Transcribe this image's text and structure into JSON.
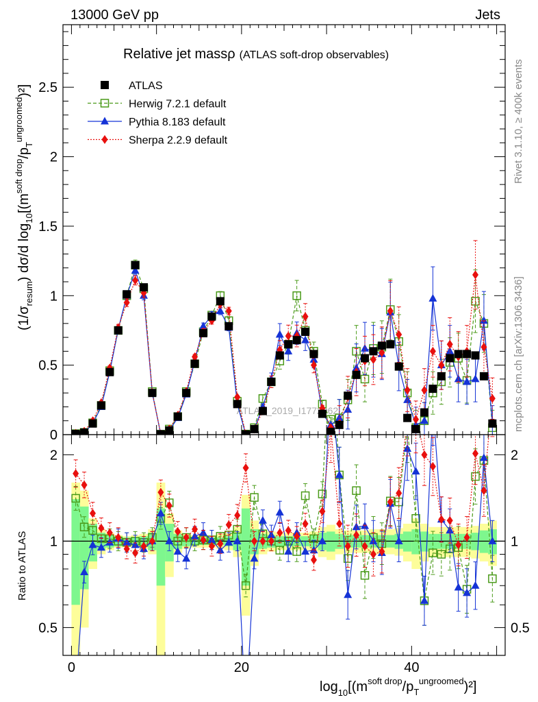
{
  "header": {
    "left": "13000 GeV pp",
    "right": "Jets"
  },
  "side_labels": {
    "rivet": "Rivet 3.1.10, ≥ 400k events",
    "mcplots": "mcplots.cern.ch [arXiv:1306.3436]"
  },
  "watermark": "ATLAS_2019_I1772062",
  "chart_data": {
    "type": "scatter",
    "title": "Relative jet massρ",
    "subtitle": "(ATLAS soft-drop observables)",
    "xlabel": {
      "pre": "log",
      "sub": "10",
      "mid1": "[(m",
      "sup1": "soft drop",
      "mid2": "/p",
      "sub2": "T",
      "sup2": "ungroomed",
      "post": ")²]"
    },
    "ylabel": {
      "pre": "(1/σ",
      "sub": "resum",
      "mid": ") dσ/d log",
      "sub2": "10",
      "mid2": "[(m",
      "sup": "soft drop",
      "mid3": "/p",
      "sub3": "T",
      "sup3": "ungroomed",
      "post": ")²]"
    },
    "ratio_ylabel": "Ratio to ATLAS",
    "xlim": [
      -1,
      51
    ],
    "ylim": [
      0,
      2.95
    ],
    "ratio_ylim": [
      0.4,
      2.35
    ],
    "x_ticks": [
      0,
      20,
      40
    ],
    "y_ticks": [
      0,
      0.5,
      1,
      1.5,
      2,
      2.5
    ],
    "y_tick_labels": [
      "0",
      "0.5",
      "1",
      "1.5",
      "2",
      "2.5"
    ],
    "ratio_ticks": [
      0.5,
      1,
      2
    ],
    "ratio_tick_labels": [
      "0.5",
      "1",
      "2"
    ],
    "x": [
      0.5,
      1.5,
      2.5,
      3.5,
      4.5,
      5.5,
      6.5,
      7.5,
      8.5,
      9.5,
      10.5,
      11.5,
      12.5,
      13.5,
      14.5,
      15.5,
      16.5,
      17.5,
      18.5,
      19.5,
      20.5,
      21.5,
      22.5,
      23.5,
      24.5,
      25.5,
      26.5,
      27.5,
      28.5,
      29.5,
      30.5,
      31.5,
      32.5,
      33.5,
      34.5,
      35.5,
      36.5,
      37.5,
      38.5,
      39.5,
      40.5,
      41.5,
      42.5,
      43.5,
      44.5,
      45.5,
      46.5,
      47.5,
      48.5,
      49.5
    ],
    "legend": [
      "ATLAS",
      "Herwig 7.2.1 default",
      "Pythia 8.183 default",
      "Sherpa 2.2.9 default"
    ],
    "series": [
      {
        "name": "ATLAS",
        "color": "#000000",
        "values": [
          0.005,
          0.015,
          0.08,
          0.21,
          0.45,
          0.75,
          1.01,
          1.22,
          1.06,
          0.3,
          0.003,
          0.03,
          0.13,
          0.3,
          0.51,
          0.73,
          0.85,
          0.96,
          0.78,
          0.22,
          0.002,
          0.04,
          0.17,
          0.38,
          0.57,
          0.65,
          0.68,
          0.74,
          0.58,
          0.15,
          0.02,
          0.07,
          0.28,
          0.43,
          0.55,
          0.6,
          0.64,
          0.65,
          0.49,
          0.12,
          0.04,
          0.16,
          0.33,
          0.42,
          0.55,
          0.58,
          0.58,
          0.57,
          0.42,
          0.08
        ]
      },
      {
        "name": "Herwig 7.2.1 default",
        "color": "#4a9a19",
        "values": [
          0.007,
          0.016,
          0.085,
          0.21,
          0.46,
          0.75,
          1.0,
          1.22,
          1.05,
          0.31,
          0.003,
          0.04,
          0.13,
          0.31,
          0.51,
          0.74,
          0.86,
          1.0,
          0.82,
          0.24,
          0.004,
          0.05,
          0.26,
          0.38,
          0.53,
          0.65,
          1.0,
          0.75,
          0.6,
          0.22,
          0.11,
          0.12,
          0.25,
          0.6,
          0.4,
          0.62,
          0.63,
          0.9,
          0.67,
          0.3,
          0.05,
          0.1,
          0.3,
          0.38,
          0.52,
          0.55,
          0.39,
          0.96,
          0.8,
          0.05
        ]
      },
      {
        "name": "Pythia 8.183 default",
        "color": "#1533d6",
        "values": [
          0.001,
          0.012,
          0.08,
          0.2,
          0.45,
          0.76,
          1.0,
          1.18,
          1.0,
          0.3,
          0.004,
          0.03,
          0.12,
          0.29,
          0.53,
          0.78,
          0.86,
          0.89,
          0.77,
          0.22,
          0.0,
          0.04,
          0.2,
          0.4,
          0.72,
          0.6,
          0.73,
          0.68,
          0.54,
          0.15,
          0.07,
          0.12,
          0.18,
          0.48,
          0.62,
          0.6,
          0.58,
          0.88,
          0.49,
          0.25,
          0.07,
          0.1,
          0.98,
          0.5,
          0.6,
          0.4,
          0.38,
          0.4,
          0.82,
          0.08
        ]
      },
      {
        "name": "Sherpa 2.2.9 default",
        "color": "#e8100e",
        "values": [
          0.009,
          0.024,
          0.1,
          0.23,
          0.48,
          0.77,
          0.95,
          1.11,
          1.02,
          0.3,
          0.005,
          0.04,
          0.14,
          0.31,
          0.56,
          0.74,
          0.82,
          0.94,
          0.89,
          0.27,
          0.004,
          0.04,
          0.17,
          0.38,
          0.61,
          0.71,
          0.71,
          0.85,
          0.5,
          0.19,
          0.05,
          0.08,
          0.27,
          0.45,
          0.53,
          0.54,
          0.59,
          0.89,
          0.72,
          0.32,
          0.11,
          0.32,
          0.6,
          0.5,
          0.65,
          0.56,
          0.6,
          1.15,
          0.63,
          0.26
        ]
      }
    ],
    "ratio_series": [
      {
        "name": "Herwig 7.2.1 default",
        "values": [
          1.41,
          1.12,
          1.09,
          1.02,
          1.02,
          1.0,
          0.99,
          1.0,
          0.99,
          1.03,
          1.2,
          1.36,
          1.0,
          1.03,
          1.0,
          1.01,
          1.01,
          1.04,
          1.05,
          1.1,
          0.7,
          1.42,
          1.06,
          1.0,
          0.93,
          1.0,
          0.92,
          1.44,
          1.02,
          1.46,
          5.5,
          1.7,
          0.87,
          1.5,
          0.76,
          1.03,
          0.98,
          1.38,
          1.37,
          2.5,
          1.2,
          0.62,
          0.91,
          0.9,
          0.94,
          0.95,
          0.68,
          1.68,
          1.91,
          0.74
        ]
      },
      {
        "name": "Pythia 8.183 default",
        "values": [
          0.3,
          0.78,
          0.97,
          0.95,
          0.99,
          1.02,
          0.99,
          0.97,
          0.94,
          1.0,
          1.25,
          1.0,
          0.92,
          0.87,
          1.04,
          1.07,
          1.01,
          0.93,
          0.99,
          1.0,
          0.25,
          0.87,
          1.18,
          1.05,
          1.26,
          0.92,
          1.07,
          0.92,
          0.93,
          1.0,
          3.5,
          1.7,
          0.65,
          1.12,
          1.13,
          1.0,
          0.91,
          1.35,
          1.0,
          2.1,
          1.75,
          0.62,
          2.97,
          1.19,
          1.09,
          0.69,
          0.66,
          0.7,
          1.95,
          1.0
        ]
      },
      {
        "name": "Sherpa 2.2.9 default",
        "values": [
          1.72,
          1.57,
          1.25,
          1.11,
          1.07,
          1.03,
          0.94,
          0.91,
          0.96,
          1.0,
          1.48,
          1.33,
          1.08,
          1.03,
          1.1,
          1.01,
          0.96,
          0.98,
          1.14,
          1.23,
          1.8,
          1.0,
          1.0,
          1.0,
          1.07,
          1.09,
          1.04,
          1.15,
          0.86,
          1.27,
          2.5,
          1.15,
          0.96,
          1.05,
          0.96,
          0.9,
          0.92,
          1.37,
          1.47,
          2.67,
          2.75,
          2.0,
          1.82,
          1.19,
          1.18,
          0.97,
          1.03,
          2.02,
          1.5,
          3.25
        ]
      }
    ],
    "ratio_bands": {
      "inner_halfwidth": [
        0.4,
        0.32,
        0.15,
        0.07,
        0.05,
        0.04,
        0.03,
        0.03,
        0.04,
        0.07,
        0.3,
        0.15,
        0.06,
        0.04,
        0.03,
        0.03,
        0.03,
        0.03,
        0.04,
        0.07,
        0.3,
        0.1,
        0.06,
        0.05,
        0.04,
        0.04,
        0.04,
        0.04,
        0.05,
        0.07,
        0.08,
        0.06,
        0.05,
        0.05,
        0.05,
        0.05,
        0.05,
        0.05,
        0.06,
        0.08,
        0.1,
        0.08,
        0.06,
        0.06,
        0.06,
        0.06,
        0.06,
        0.07,
        0.09,
        0.1
      ],
      "outer_halfwidth": [
        0.6,
        0.5,
        0.2,
        0.1,
        0.07,
        0.05,
        0.04,
        0.05,
        0.06,
        0.1,
        0.6,
        0.25,
        0.09,
        0.06,
        0.05,
        0.05,
        0.05,
        0.06,
        0.07,
        0.12,
        0.45,
        0.18,
        0.1,
        0.08,
        0.07,
        0.07,
        0.07,
        0.07,
        0.08,
        0.12,
        0.14,
        0.1,
        0.09,
        0.09,
        0.09,
        0.1,
        0.1,
        0.1,
        0.11,
        0.15,
        0.2,
        0.15,
        0.12,
        0.12,
        0.12,
        0.12,
        0.12,
        0.13,
        0.15,
        0.18
      ],
      "inner_color": "#7ef78e",
      "outer_color": "#fdfd9a"
    }
  }
}
